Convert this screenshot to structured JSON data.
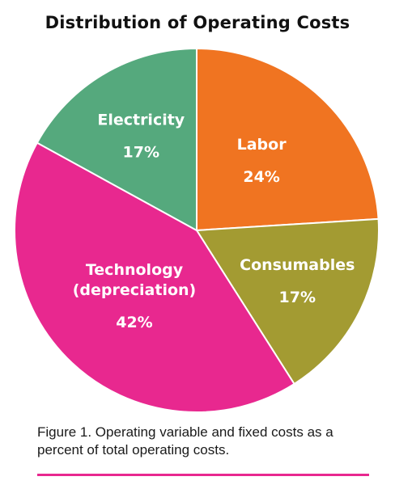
{
  "chart_data": {
    "type": "pie",
    "title": "Distribution of Operating Costs",
    "slices": [
      {
        "label": "Labor",
        "value": 24,
        "value_label": "24%",
        "color": "#f07421"
      },
      {
        "label": "Consumables",
        "value": 17,
        "value_label": "17%",
        "color": "#a39b32"
      },
      {
        "label": "Technology\n(depreciation)",
        "value": 42,
        "value_label": "42%",
        "color": "#e8288f"
      },
      {
        "label": "Electricity",
        "value": 17,
        "value_label": "17%",
        "color": "#55a97d"
      }
    ]
  },
  "caption": "Figure 1. Operating variable and fixed costs as a percent of total operating costs.",
  "divider_color": "#e8288f"
}
